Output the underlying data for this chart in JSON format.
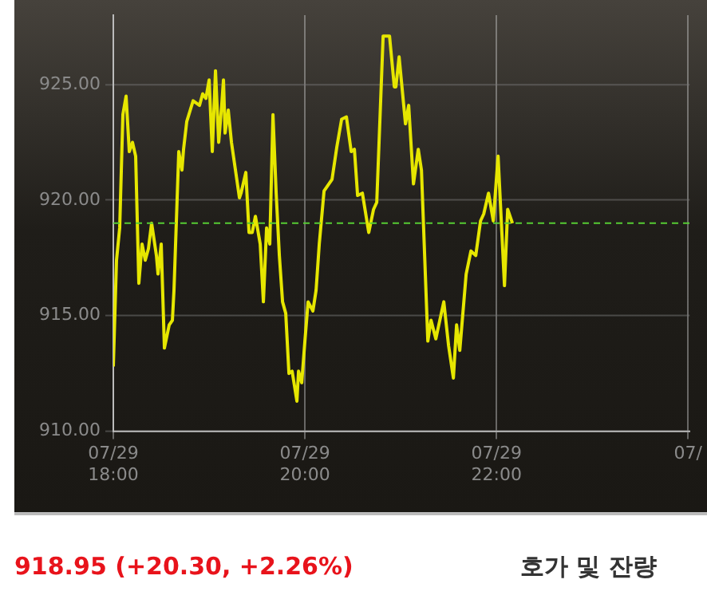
{
  "chart_data": {
    "type": "line",
    "x": [
      "--07-29T18:00",
      "--07-29T18:02",
      "--07-29T18:04",
      "--07-29T18:06",
      "--07-29T18:08",
      "--07-29T18:10",
      "--07-29T18:12",
      "--07-29T18:14",
      "--07-29T18:16",
      "--07-29T18:18",
      "--07-29T18:20",
      "--07-29T18:22",
      "--07-29T18:24",
      "--07-29T18:27",
      "--07-29T18:28",
      "--07-29T18:30",
      "--07-29T18:32",
      "--07-29T18:35",
      "--07-29T18:37",
      "--07-29T18:38",
      "--07-29T18:41",
      "--07-29T18:43",
      "--07-29T18:44",
      "--07-29T18:46",
      "--07-29T18:50",
      "--07-29T18:54",
      "--07-29T18:56",
      "--07-29T18:58",
      "--07-29T19:00",
      "--07-29T19:02",
      "--07-29T19:04",
      "--07-29T19:06",
      "--07-29T19:08",
      "--07-29T19:09",
      "--07-29T19:10",
      "--07-29T19:12",
      "--07-29T19:14",
      "--07-29T19:19",
      "--07-29T19:20",
      "--07-29T19:23",
      "--07-29T19:25",
      "--07-29T19:27",
      "--07-29T19:29",
      "--07-29T19:32",
      "--07-29T19:34",
      "--07-29T19:36",
      "--07-29T19:38",
      "--07-29T19:40",
      "--07-29T19:42",
      "--07-29T19:44",
      "--07-29T19:46",
      "--07-29T19:48",
      "--07-29T19:50",
      "--07-29T19:52",
      "--07-29T19:55",
      "--07-29T19:56",
      "--07-29T19:58",
      "--07-29T20:00",
      "--07-29T20:02",
      "--07-29T20:05",
      "--07-29T20:07",
      "--07-29T20:09",
      "--07-29T20:12",
      "--07-29T20:17",
      "--07-29T20:20",
      "--07-29T20:23",
      "--07-29T20:26",
      "--07-29T20:29",
      "--07-29T20:31",
      "--07-29T20:33",
      "--07-29T20:36",
      "--07-29T20:40",
      "--07-29T20:43",
      "--07-29T20:45",
      "--07-29T20:49",
      "--07-29T20:53",
      "--07-29T20:56",
      "--07-29T20:57",
      "--07-29T20:59",
      "--07-29T21:03",
      "--07-29T21:05",
      "--07-29T21:08",
      "--07-29T21:11",
      "--07-29T21:13",
      "--07-29T21:17",
      "--07-29T21:19",
      "--07-29T21:22",
      "--07-29T21:27",
      "--07-29T21:30",
      "--07-29T21:33",
      "--07-29T21:35",
      "--07-29T21:37",
      "--07-29T21:41",
      "--07-29T21:44",
      "--07-29T21:47",
      "--07-29T21:50",
      "--07-29T21:52",
      "--07-29T21:55",
      "--07-29T21:58",
      "--07-29T22:01",
      "--07-29T22:05",
      "--07-29T22:07",
      "--07-29T22:10"
    ],
    "series": [
      {
        "color": "#e6e600",
        "values": [
          912.8,
          917.4,
          918.8,
          923.7,
          924.5,
          922.1,
          922.5,
          921.9,
          916.4,
          918.1,
          917.4,
          917.9,
          919.0,
          917.6,
          916.8,
          918.1,
          913.6,
          914.6,
          914.8,
          916.1,
          922.1,
          921.3,
          922.2,
          923.4,
          924.3,
          924.1,
          924.6,
          924.4,
          925.2,
          922.1,
          925.6,
          922.5,
          924.2,
          925.2,
          922.9,
          923.9,
          922.5,
          920.1,
          920.3,
          921.2,
          918.6,
          918.6,
          919.3,
          918.1,
          915.6,
          918.8,
          918.1,
          923.7,
          920.3,
          917.6,
          915.6,
          915.1,
          912.5,
          912.6,
          911.3,
          912.6,
          912.1,
          913.9,
          915.6,
          915.2,
          916.1,
          918.1,
          920.4,
          920.9,
          922.3,
          923.5,
          923.6,
          922.1,
          922.2,
          920.2,
          920.3,
          918.6,
          919.6,
          919.9,
          927.1,
          927.1,
          924.9,
          924.9,
          926.2,
          923.3,
          924.1,
          920.7,
          922.2,
          921.3,
          913.9,
          914.8,
          914.0,
          915.6,
          913.7,
          912.3,
          914.6,
          913.5,
          916.8,
          917.8,
          917.6,
          919.1,
          919.4,
          920.3,
          919.1,
          921.9,
          916.3,
          919.6,
          919.0
        ]
      }
    ],
    "xlim": [
      "--07-29T18:00",
      "--07-30T00:01"
    ],
    "xticks": [
      {
        "value": "--07-29T18:00",
        "label": "07/29\n18:00"
      },
      {
        "value": "--07-29T20:00",
        "label": "07/29\n20:00"
      },
      {
        "value": "--07-29T22:00",
        "label": "07/29\n22:00"
      },
      {
        "value": "--07-30T00:00",
        "label": "07/"
      }
    ],
    "ylim": [
      910,
      928
    ],
    "yticks": [
      {
        "value": 910,
        "label": "910.00"
      },
      {
        "value": 915,
        "label": "915.00"
      },
      {
        "value": 920,
        "label": "920.00"
      },
      {
        "value": 925,
        "label": "925.00"
      }
    ],
    "grid": true,
    "marker": "none",
    "line_style": "solid",
    "legend": false,
    "ref_lines": [
      {
        "axis": "y",
        "value": 919.0,
        "color": "#55cc33",
        "line_style": "dashed"
      }
    ],
    "annotations": [
      "918.95 (+20.30, +2.26%)",
      "호가 및 잔량"
    ]
  }
}
